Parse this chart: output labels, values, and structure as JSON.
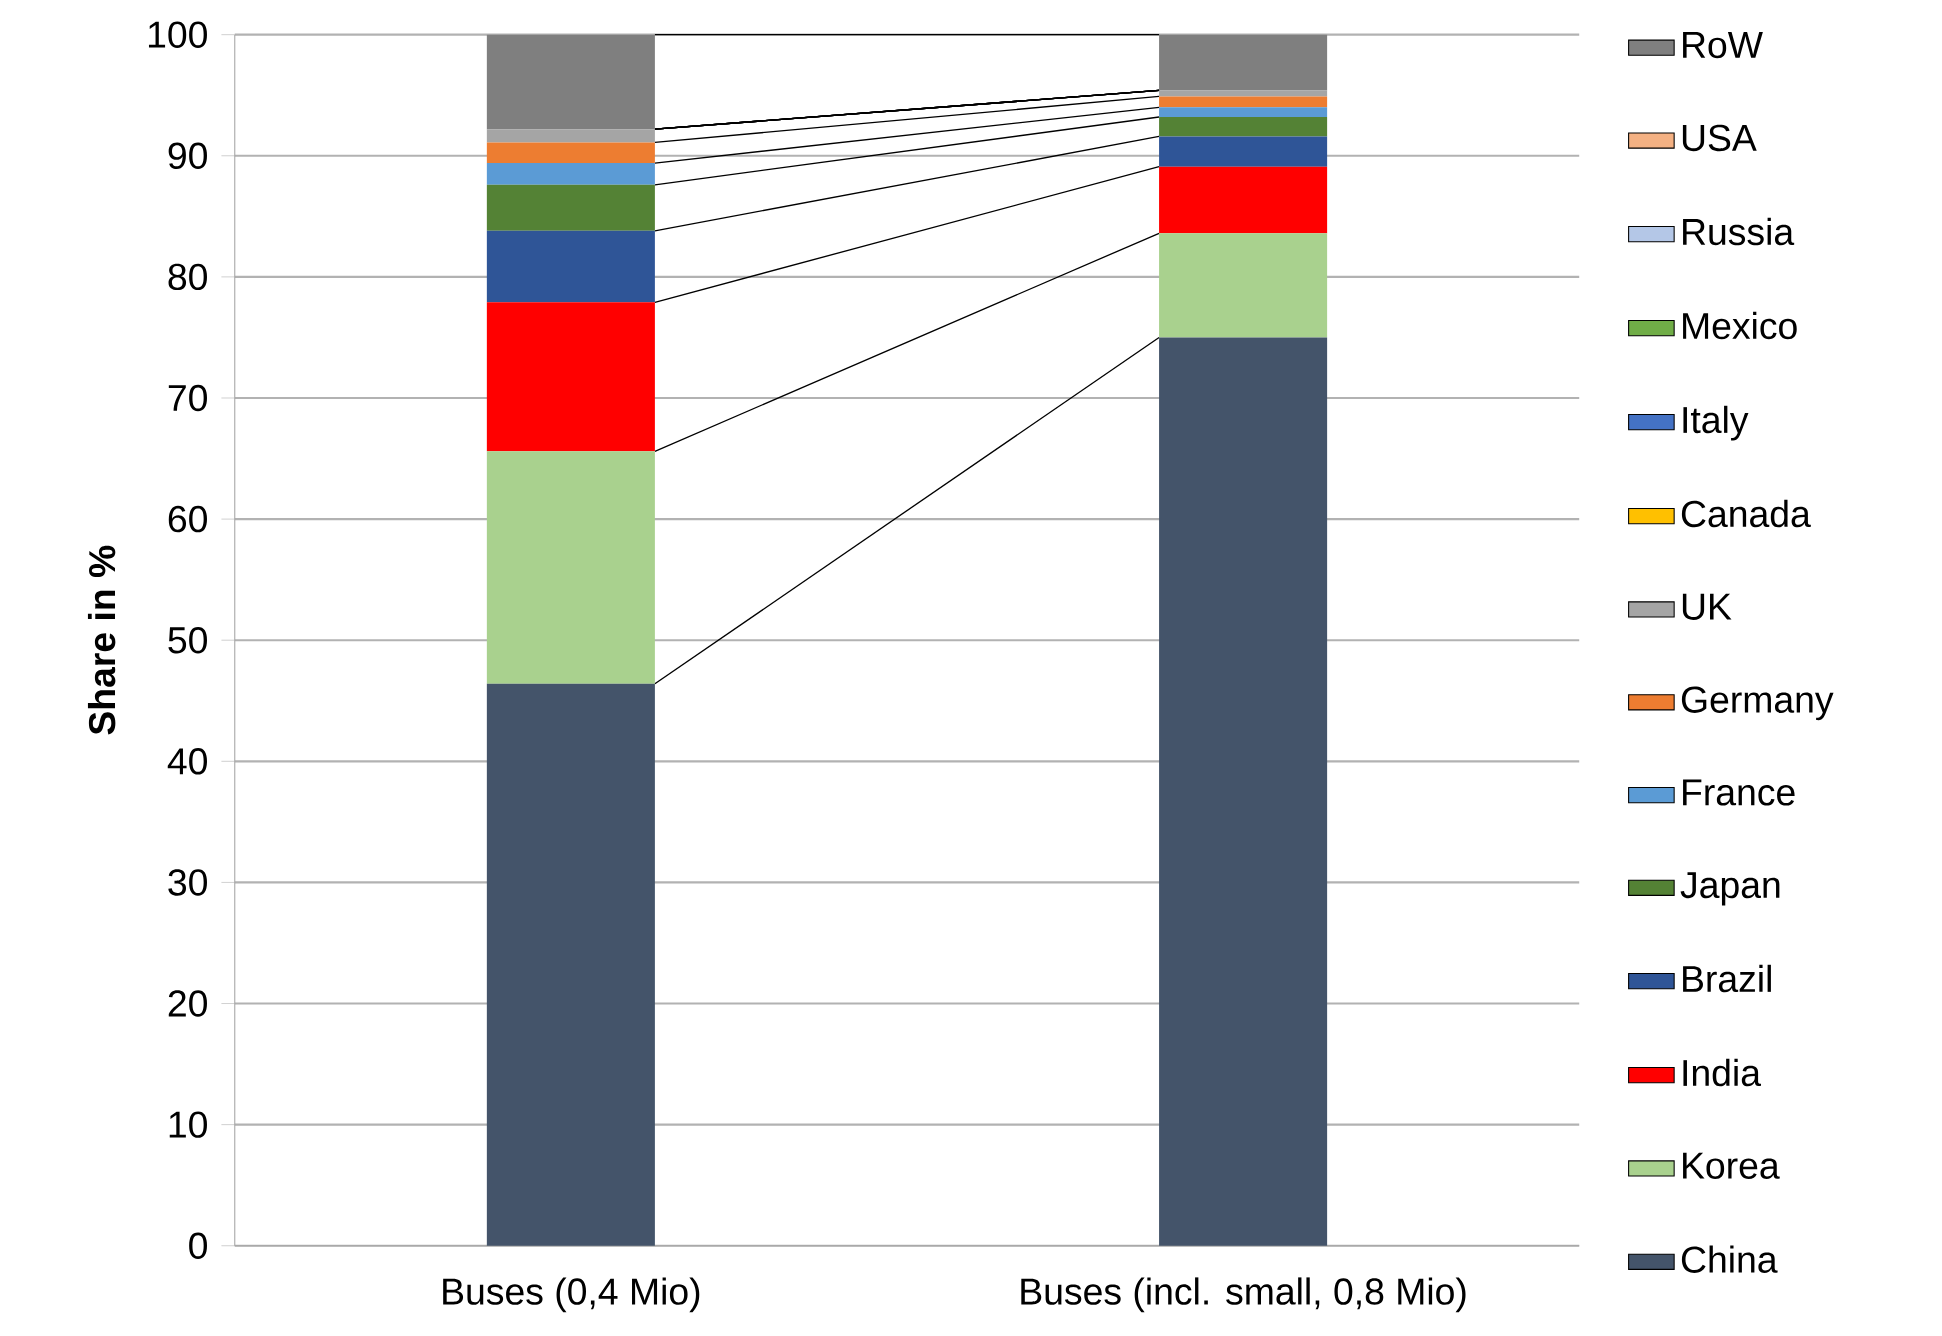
{
  "chart_data": {
    "type": "bar",
    "stacked": true,
    "ylabel": "Share in %",
    "categories": [
      "Buses (0,4 Mio)",
      "Buses (incl. small, 0,8 Mio)"
    ],
    "series": [
      {
        "name": "China",
        "color": "#44546a",
        "values": [
          46.4,
          75.0
        ]
      },
      {
        "name": "Korea",
        "color": "#a9d18e",
        "values": [
          19.2,
          8.6
        ]
      },
      {
        "name": "India",
        "color": "#ff0000",
        "values": [
          12.3,
          5.5
        ]
      },
      {
        "name": "Brazil",
        "color": "#2f5597",
        "values": [
          5.9,
          2.5
        ]
      },
      {
        "name": "Japan",
        "color": "#548235",
        "values": [
          3.8,
          1.6
        ]
      },
      {
        "name": "France",
        "color": "#5b9bd5",
        "values": [
          1.8,
          0.8
        ]
      },
      {
        "name": "Germany",
        "color": "#ed7d31",
        "values": [
          1.7,
          0.9
        ]
      },
      {
        "name": "UK",
        "color": "#a5a5a5",
        "values": [
          1.1,
          0.5
        ]
      },
      {
        "name": "Canada",
        "color": "#ffc000",
        "values": [
          0,
          0
        ]
      },
      {
        "name": "Italy",
        "color": "#4472c4",
        "values": [
          0,
          0
        ]
      },
      {
        "name": "Mexico",
        "color": "#70ad47",
        "values": [
          0,
          0
        ]
      },
      {
        "name": "Russia",
        "color": "#b4c7e7",
        "values": [
          0,
          0
        ]
      },
      {
        "name": "USA",
        "color": "#f4b183",
        "values": [
          0,
          0
        ]
      },
      {
        "name": "RoW",
        "color": "#7f7f7f",
        "values": [
          7.8,
          4.6
        ]
      }
    ],
    "ylim": [
      0,
      100
    ],
    "yticks": [
      0,
      10,
      20,
      30,
      40,
      50,
      60,
      70,
      80,
      90,
      100
    ],
    "grid": "y",
    "legend": "right"
  }
}
